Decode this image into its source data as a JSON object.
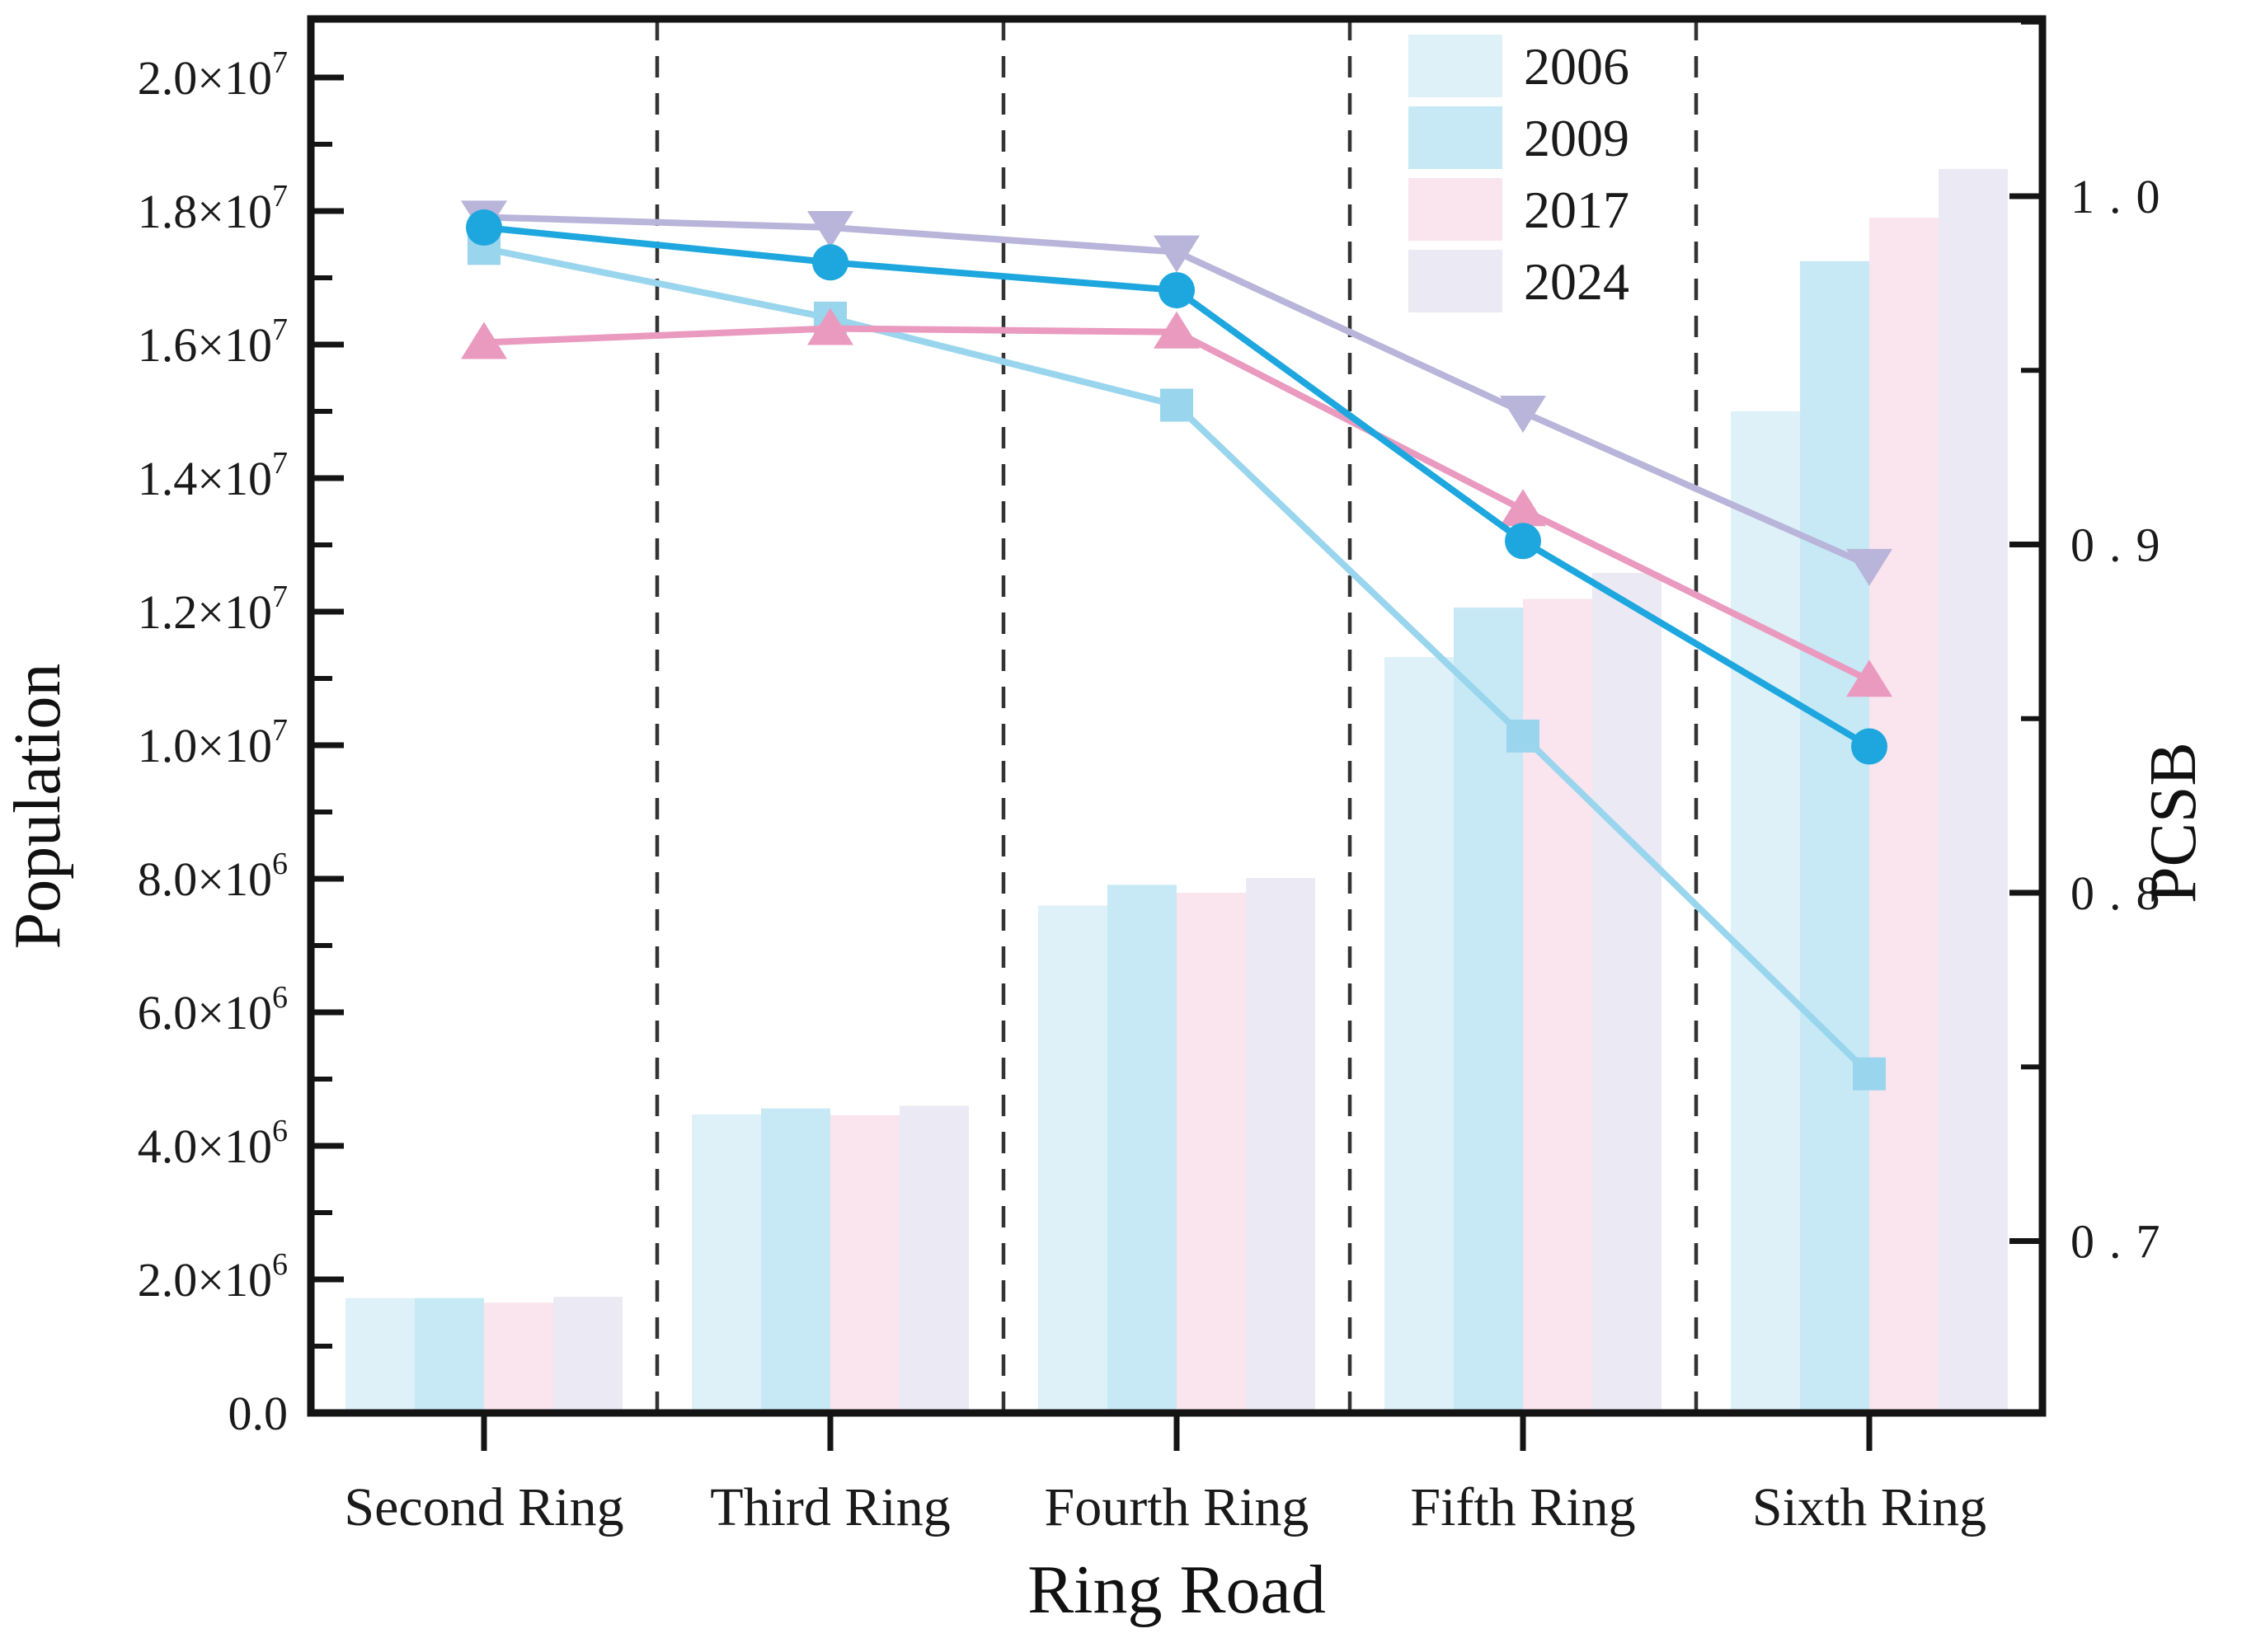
{
  "chart_data": {
    "type": "combo-bar-line",
    "categories": [
      "Second Ring",
      "Third Ring",
      "Fourth Ring",
      "Fifth Ring",
      "Sixth Ring"
    ],
    "bar_series": [
      {
        "name": "2006",
        "color": "#def0f8",
        "values": [
          1720000,
          4470000,
          7600000,
          11320000,
          15000000
        ]
      },
      {
        "name": "2009",
        "color": "#c7e9f5",
        "values": [
          1720000,
          4560000,
          7910000,
          12060000,
          17250000
        ]
      },
      {
        "name": "2017",
        "color": "#fae4ee",
        "values": [
          1650000,
          4460000,
          7790000,
          12190000,
          17900000
        ]
      },
      {
        "name": "2024",
        "color": "#ebe9f4",
        "values": [
          1740000,
          4600000,
          8010000,
          12580000,
          18630000
        ]
      }
    ],
    "line_series": [
      {
        "name": "2006",
        "color": "#9ad5ee",
        "marker": "square",
        "values": [
          0.985,
          0.965,
          0.94,
          0.845,
          0.748
        ]
      },
      {
        "name": "2017",
        "color": "#ea9abf",
        "marker": "triangle-up",
        "values": [
          0.958,
          0.962,
          0.961,
          0.91,
          0.861
        ]
      },
      {
        "name": "2024",
        "color": "#b9b4d9",
        "marker": "triangle-down",
        "values": [
          0.994,
          0.991,
          0.984,
          0.938,
          0.894
        ]
      },
      {
        "name": "2009",
        "color": "#1ea7de",
        "marker": "circle",
        "values": [
          0.991,
          0.981,
          0.973,
          0.901,
          0.842
        ]
      }
    ],
    "left_axis": {
      "label": "Population",
      "min": 0,
      "max": 20000000,
      "tick_labels": [
        "0.0",
        "2.0×10^6",
        "4.0×10^6",
        "6.0×10^6",
        "8.0×10^6",
        "1.0×10^7",
        "1.2×10^7",
        "1.4×10^7",
        "1.6×10^7",
        "1.8×10^7",
        "2.0×10^7"
      ]
    },
    "right_axis": {
      "label": "PCSB",
      "major_values": [
        1.0,
        0.9,
        0.8,
        0.7
      ],
      "tick_labels": [
        "1.0",
        "0.9",
        "0.8",
        "0.7"
      ]
    },
    "x_axis": {
      "label": "Ring Road"
    },
    "legend": {
      "items": [
        "2006",
        "2009",
        "2017",
        "2024"
      ]
    },
    "grid": "vertical-dashed-category-separators",
    "legend_position": "top-right-inside"
  }
}
